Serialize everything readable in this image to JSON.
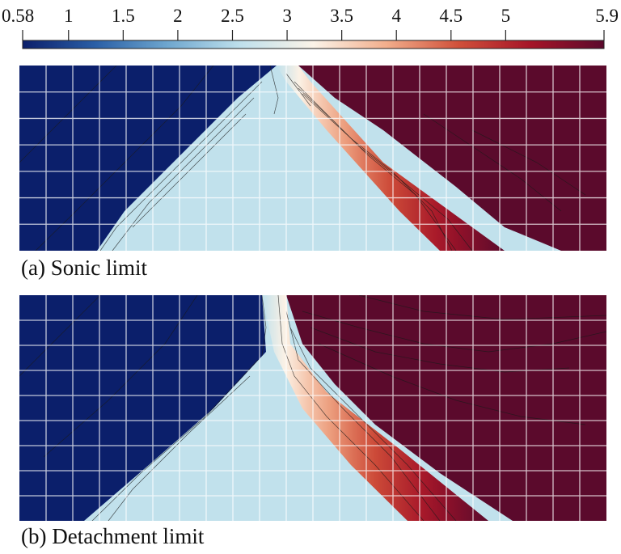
{
  "chart_data": {
    "type": "heatmap",
    "colorbar": {
      "range": [
        0.58,
        5.9
      ],
      "ticks": [
        {
          "value": 0.58,
          "label": "0.58"
        },
        {
          "value": 1,
          "label": "1"
        },
        {
          "value": 1.5,
          "label": "1.5"
        },
        {
          "value": 2,
          "label": "2"
        },
        {
          "value": 2.5,
          "label": "2.5"
        },
        {
          "value": 3,
          "label": "3"
        },
        {
          "value": 3.5,
          "label": "3.5"
        },
        {
          "value": 4,
          "label": "4"
        },
        {
          "value": 4.5,
          "label": "4.5"
        },
        {
          "value": 5,
          "label": "5"
        },
        {
          "value": 5.9,
          "label": "5.9"
        }
      ],
      "colormap": [
        "#0b1f6b",
        "#2a5fa6",
        "#6fa7cf",
        "#bfe0ec",
        "#fbf3e8",
        "#f2ae8c",
        "#d0503a",
        "#a51428",
        "#5b0a2c"
      ]
    },
    "panels": [
      {
        "id": "a",
        "caption": "(a) Sonic limit",
        "regions": {
          "upstream_value": 0.58,
          "fan_value": 2.6,
          "downstream_value": 5.9
        },
        "grid_columns": 22,
        "grid_rows": 7
      },
      {
        "id": "b",
        "caption": "(b) Detachment limit",
        "regions": {
          "upstream_value": 0.58,
          "fan_value": 2.6,
          "downstream_value": 5.9
        },
        "grid_columns": 22,
        "grid_rows": 9
      }
    ]
  }
}
